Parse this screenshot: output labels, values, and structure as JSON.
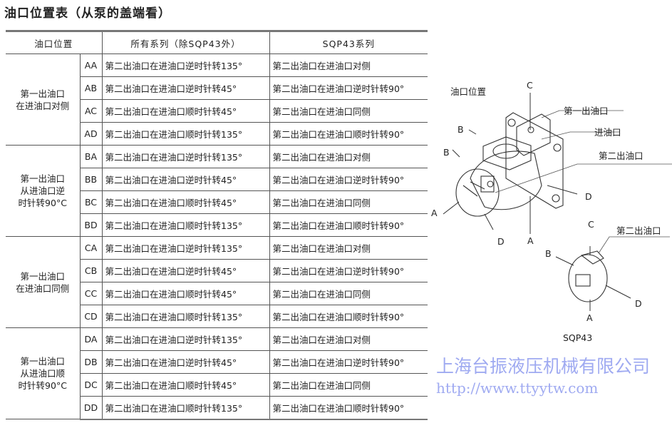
{
  "title": "油口位置表（从泵的盖端看）",
  "table": {
    "headers": [
      "油口位置",
      "所有系列（除SQP43外）",
      "SQP43系列"
    ],
    "groups": [
      {
        "label": "第一出油口\n在进油口对侧",
        "rows": [
          {
            "code": "AA",
            "all": "第二出油口在进油口逆时针转135°",
            "sqp43": "第二出油口在进油口对侧"
          },
          {
            "code": "AB",
            "all": "第二出油口在进油口逆时针转45°",
            "sqp43": "第二出油口在进油口逆时针转90°"
          },
          {
            "code": "AC",
            "all": "第二出油口在进油口顺时针转45°",
            "sqp43": "第二出油口在进油口同侧"
          },
          {
            "code": "AD",
            "all": "第二出油口在进油口顺时针转135°",
            "sqp43": "第二出油口在进油口顺时针转90°"
          }
        ]
      },
      {
        "label": "第一出油口\n从进油口逆\n时针转90°C",
        "rows": [
          {
            "code": "BA",
            "all": "第二出油口在进油口逆时针转135°",
            "sqp43": "第二出油口在进油口对侧"
          },
          {
            "code": "BB",
            "all": "第二出油口在进油口逆时针转45°",
            "sqp43": "第二出油口在进油口逆时针转90°"
          },
          {
            "code": "BC",
            "all": "第二出油口在进油口顺时针转45°",
            "sqp43": "第二出油口在进油口同侧"
          },
          {
            "code": "BD",
            "all": "第二出油口在进油口顺时针转135°",
            "sqp43": "第二出油口在进油口顺时针转90°"
          }
        ]
      },
      {
        "label": "第一出油口\n在进油口同侧",
        "rows": [
          {
            "code": "CA",
            "all": "第二出油口在进油口逆时针转135°",
            "sqp43": "第二出油口在进油口对侧"
          },
          {
            "code": "CB",
            "all": "第二出油口在进油口逆时针转45°",
            "sqp43": "第二出油口在进油口逆时针转90°"
          },
          {
            "code": "CC",
            "all": "第二出油口在进油口顺时针转45°",
            "sqp43": "第二出油口在进油口同侧"
          },
          {
            "code": "CD",
            "all": "第二出油口在进油口顺时针转135°",
            "sqp43": "第二出油口在进油口顺时针转90°"
          }
        ]
      },
      {
        "label": "第一出油口\n从进油口顺\n时针转90°C",
        "rows": [
          {
            "code": "DA",
            "all": "第二出油口在进油口逆时针转135°",
            "sqp43": "第二出油口在进油口对侧"
          },
          {
            "code": "DB",
            "all": "第二出油口在进油口逆时针转45°",
            "sqp43": "第二出油口在进油口逆时针转90°"
          },
          {
            "code": "DC",
            "all": "第二出油口在进油口顺时针转45°",
            "sqp43": "第二出油口在进油口同侧"
          },
          {
            "code": "DD",
            "all": "第二出油口在进油口顺时针转135°",
            "sqp43": "第二出油口在进油口顺时针转90°"
          }
        ]
      }
    ]
  },
  "diagram": {
    "title": "油口位置",
    "first_outlet": "第一出油口",
    "inlet": "进油口",
    "second_outlet": "第二出油口",
    "A": "A",
    "B": "B",
    "C": "C",
    "D": "D",
    "small_second_outlet": "第二出油口",
    "small_caption": "SQP43"
  },
  "watermark": {
    "line1": "上海台振液压机械有限公司",
    "line2": "http://www.ttyytw.com"
  }
}
